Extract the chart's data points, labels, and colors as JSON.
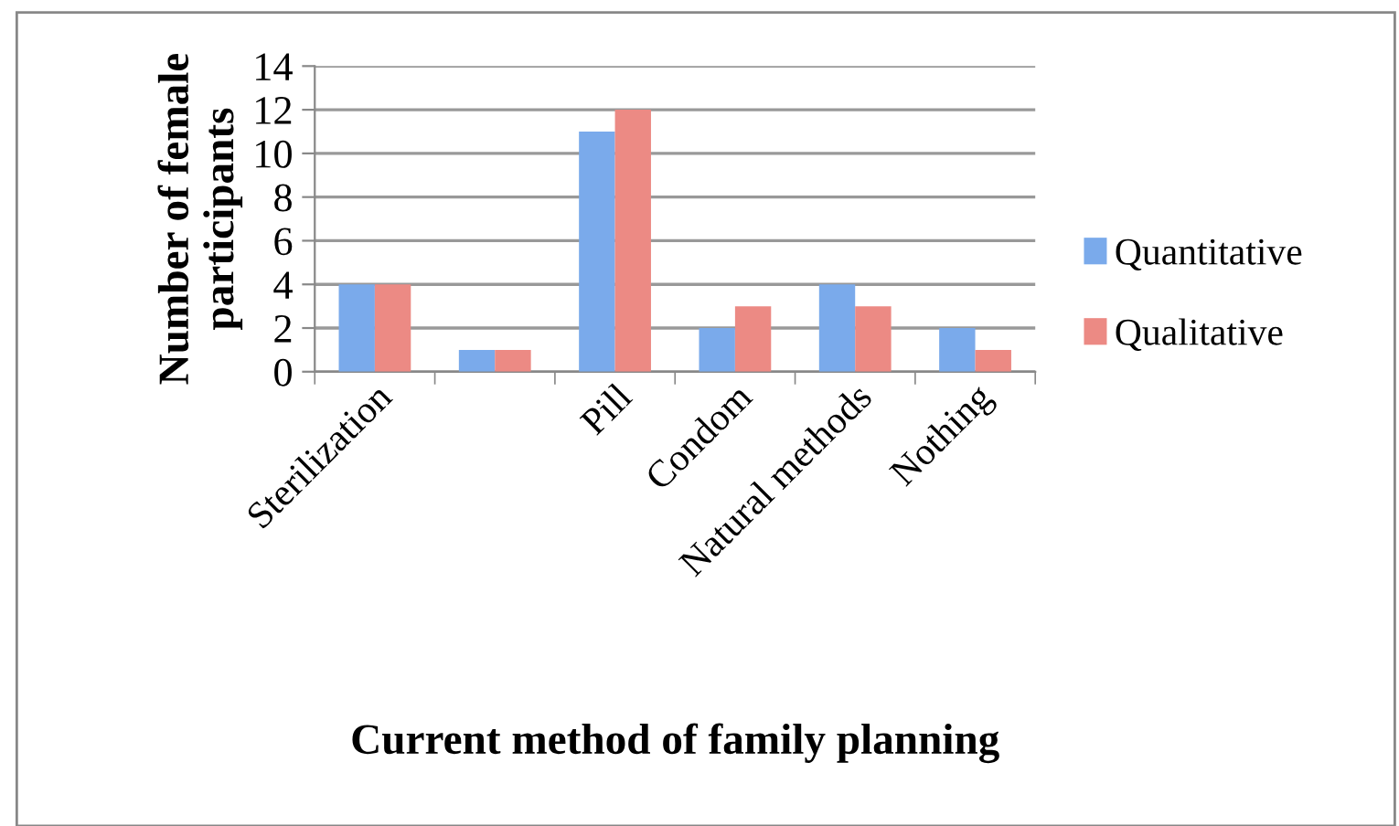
{
  "chart_data": {
    "type": "bar",
    "xlabel": "Current method of family planning",
    "ylabel": "Number of female\nparticipants",
    "categories": [
      "Sterilization",
      null,
      "Pill",
      "Condom",
      "Natural methods",
      "Nothing"
    ],
    "series": [
      {
        "name": "Quantitative",
        "color": "#7aaaeb",
        "values": [
          4,
          1,
          11,
          2,
          4,
          2
        ]
      },
      {
        "name": "Qualitative",
        "color": "#ec8a84",
        "values": [
          4,
          1,
          12,
          3,
          3,
          1
        ]
      }
    ],
    "ylim": [
      0,
      14
    ],
    "yticks": [
      0,
      2,
      4,
      6,
      8,
      10,
      12,
      14
    ],
    "grid": "y",
    "legend": "right"
  }
}
